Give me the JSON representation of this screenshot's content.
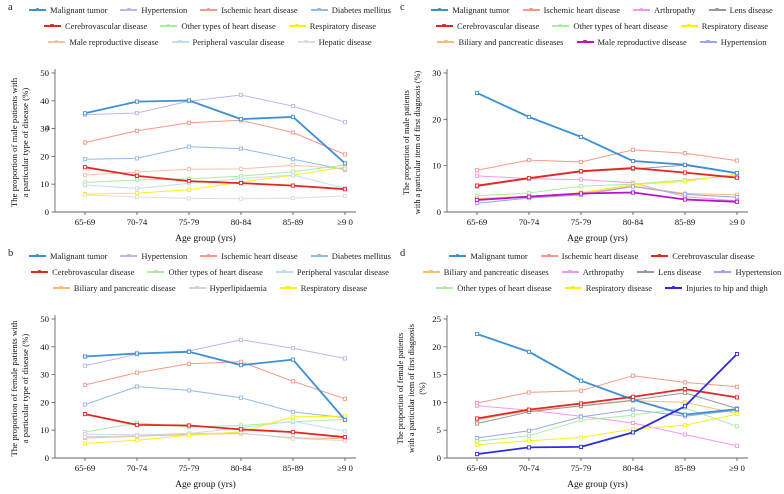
{
  "figure": {
    "background": "#ffffff",
    "axis_color": "#666666",
    "x_label": "Age group (yrs)",
    "x_categories": [
      "65-69",
      "70-74",
      "75-79",
      "80-84",
      "85-89",
      "≥9 0"
    ]
  },
  "chart_data": [
    {
      "id": "a",
      "type": "line",
      "panel_letter": "a",
      "stray_label": "a",
      "xlabel": "Age group (yrs)",
      "categories": [
        "65-69",
        "70-74",
        "75-79",
        "80-84",
        "85-89",
        "≥9 0"
      ],
      "ylabel_lines": [
        "The proportion of male patients with",
        "a particular type of disease  (%)"
      ],
      "ylim": [
        0,
        50
      ],
      "yticks": [
        0,
        10,
        20,
        30,
        40,
        50
      ],
      "grid": false,
      "legend_position": "top",
      "legend_rows": [
        4,
        3,
        3
      ],
      "series": [
        {
          "name": "Malignant tumor",
          "color": "#3d8fd6",
          "bold": true,
          "values": [
            35.5,
            39.7,
            40.1,
            33.4,
            34.2,
            17.5
          ]
        },
        {
          "name": "Hypertension",
          "color": "#bdb8ec",
          "bold": false,
          "values": [
            35.0,
            35.6,
            39.9,
            42.1,
            38.1,
            32.3
          ]
        },
        {
          "name": "Ischemic heart disease",
          "color": "#f6998a",
          "bold": false,
          "values": [
            25.0,
            29.2,
            32.1,
            33.0,
            28.6,
            20.7
          ]
        },
        {
          "name": "Diabetes mellitus",
          "color": "#90bce8",
          "bold": false,
          "values": [
            19.0,
            19.3,
            23.5,
            22.8,
            19.0,
            15.2
          ]
        },
        {
          "name": "Cerebrovascular disease",
          "color": "#e32722",
          "bold": true,
          "values": [
            16.1,
            13.0,
            11.1,
            10.4,
            9.5,
            8.2
          ]
        },
        {
          "name": "Other types of heart disease",
          "color": "#a8eda0",
          "bold": false,
          "values": [
            10.6,
            11.5,
            11.9,
            12.9,
            14.5,
            16.9
          ]
        },
        {
          "name": "Respiratory disease",
          "color": "#f6f01c",
          "bold": false,
          "values": [
            6.4,
            6.8,
            8.0,
            10.8,
            13.2,
            16.2
          ]
        },
        {
          "name": "Male reproductive disease",
          "color": "#f9c0a8",
          "bold": false,
          "values": [
            13.3,
            14.4,
            15.4,
            15.5,
            16.8,
            15.6
          ]
        },
        {
          "name": "Peripheral vascular disease",
          "color": "#c3dcf5",
          "bold": false,
          "values": [
            9.7,
            8.5,
            10.3,
            12.0,
            13.3,
            8.5
          ]
        },
        {
          "name": "Hepatic disease",
          "color": "#dedede",
          "bold": false,
          "values": [
            6.1,
            5.4,
            4.9,
            4.8,
            5.0,
            5.8
          ]
        }
      ]
    },
    {
      "id": "b",
      "type": "line",
      "panel_letter": "b",
      "stray_label": "",
      "xlabel": "Age group (yrs)",
      "categories": [
        "65-69",
        "70-74",
        "75-79",
        "80-84",
        "85-89",
        "≥9 0"
      ],
      "ylabel_lines": [
        "The proportion of female patients with",
        "a particular type of disease (%)"
      ],
      "ylim": [
        0,
        50
      ],
      "yticks": [
        0,
        10,
        20,
        30,
        40,
        50
      ],
      "grid": false,
      "legend_position": "top",
      "legend_rows": [
        4,
        3,
        3
      ],
      "series": [
        {
          "name": "Malignant tumor",
          "color": "#3d8fd6",
          "bold": true,
          "values": [
            36.5,
            37.6,
            38.2,
            33.4,
            35.4,
            13.7
          ]
        },
        {
          "name": "Hypertension",
          "color": "#bdb8ec",
          "bold": false,
          "values": [
            33.2,
            37.3,
            38.5,
            42.5,
            39.5,
            35.8
          ]
        },
        {
          "name": "Ischemic heart disease",
          "color": "#f6998a",
          "bold": false,
          "values": [
            26.3,
            30.7,
            33.9,
            34.6,
            27.6,
            21.3
          ]
        },
        {
          "name": "Diabetes mellitus",
          "color": "#90bce8",
          "bold": false,
          "values": [
            19.2,
            25.7,
            24.3,
            21.7,
            16.6,
            14.5
          ]
        },
        {
          "name": "Cerebrovascular disease",
          "color": "#e32722",
          "bold": true,
          "values": [
            15.8,
            11.9,
            11.7,
            10.3,
            9.3,
            7.5
          ]
        },
        {
          "name": "Other types of heart disease",
          "color": "#a8eda0",
          "bold": false,
          "values": [
            9.3,
            12.6,
            11.2,
            11.7,
            13.0,
            13.9
          ]
        },
        {
          "name": "Peripheral vascular disease",
          "color": "#c3dcf5",
          "bold": false,
          "values": [
            8.6,
            8.3,
            8.8,
            10.9,
            13.2,
            9.6
          ]
        },
        {
          "name": "Biliary and pancreatic disease",
          "color": "#f9bc74",
          "bold": false,
          "values": [
            7.2,
            7.8,
            8.4,
            8.8,
            7.3,
            6.9
          ]
        },
        {
          "name": "Hyperlipidaemia",
          "color": "#d4d4d4",
          "bold": false,
          "values": [
            7.6,
            8.0,
            8.8,
            9.0,
            7.0,
            6.3
          ]
        },
        {
          "name": "Respiratory disease",
          "color": "#f6f01c",
          "bold": false,
          "values": [
            5.2,
            6.4,
            8.2,
            9.4,
            14.8,
            15.0
          ]
        }
      ]
    },
    {
      "id": "c",
      "type": "line",
      "panel_letter": "c",
      "stray_label": "",
      "xlabel": "Age group (yrs)",
      "categories": [
        "65-69",
        "70-74",
        "75-79",
        "80-84",
        "85-89",
        "≥9 0"
      ],
      "ylabel_lines": [
        "The proportion of male patients",
        "with a particular item of first diagnosis (%)"
      ],
      "ylim": [
        0,
        30
      ],
      "yticks": [
        0,
        10,
        20,
        30
      ],
      "grid": false,
      "legend_position": "top",
      "legend_rows": [
        4,
        3,
        3
      ],
      "series": [
        {
          "name": "Malignant tumor",
          "color": "#3d8fd6",
          "bold": true,
          "values": [
            25.7,
            20.5,
            16.2,
            11.0,
            10.2,
            8.4
          ]
        },
        {
          "name": "Ischemic heart disease",
          "color": "#f6998a",
          "bold": false,
          "values": [
            9.0,
            11.2,
            10.8,
            13.4,
            12.7,
            11.1
          ]
        },
        {
          "name": "Arthropathy",
          "color": "#f598ea",
          "bold": false,
          "values": [
            7.8,
            7.2,
            7.0,
            6.3,
            3.3,
            2.4
          ]
        },
        {
          "name": "Lens disease",
          "color": "#999999",
          "bold": false,
          "values": [
            5.5,
            7.2,
            8.7,
            9.3,
            10.1,
            8.3
          ]
        },
        {
          "name": "Cerebrovascular disease",
          "color": "#e32722",
          "bold": true,
          "values": [
            5.7,
            7.3,
            8.8,
            9.5,
            8.5,
            7.4
          ]
        },
        {
          "name": "Other types of heart disease",
          "color": "#a8eda0",
          "bold": false,
          "values": [
            3.5,
            4.1,
            5.6,
            6.0,
            6.9,
            7.9
          ]
        },
        {
          "name": "Respiratory disease",
          "color": "#f6f01c",
          "bold": false,
          "values": [
            2.9,
            3.3,
            4.2,
            5.9,
            6.6,
            8.2
          ]
        },
        {
          "name": "Biliary and pancreatic diseases",
          "color": "#f9bc74",
          "bold": false,
          "values": [
            2.9,
            3.4,
            4.0,
            5.6,
            4.0,
            3.7
          ]
        },
        {
          "name": "Male reproductive disease",
          "color": "#ba12c6",
          "bold": true,
          "values": [
            2.6,
            3.3,
            4.0,
            4.2,
            2.7,
            2.2
          ]
        },
        {
          "name": "Hypertension",
          "color": "#9aa5ec",
          "bold": false,
          "values": [
            1.9,
            3.0,
            3.7,
            5.5,
            3.8,
            3.2
          ]
        }
      ]
    },
    {
      "id": "d",
      "type": "line",
      "panel_letter": "d",
      "stray_label": "",
      "xlabel": "Age group (yrs)",
      "ylabel_lines": [
        "The proportion of female patients",
        "with a particular item of first diagnosis",
        "(%)"
      ],
      "categories": [
        "65-69",
        "70-74",
        "75-79",
        "80-84",
        "85-89",
        "≥9 0"
      ],
      "ylim": [
        0,
        25
      ],
      "yticks": [
        0,
        5,
        10,
        15,
        20,
        25
      ],
      "grid": false,
      "legend_position": "top",
      "legend_rows": [
        3,
        4,
        3
      ],
      "series": [
        {
          "name": "Malignant tumor",
          "color": "#3d8fd6",
          "bold": true,
          "values": [
            22.3,
            19.1,
            13.9,
            10.5,
            7.8,
            8.8
          ]
        },
        {
          "name": "Ischemic heart disease",
          "color": "#f6998a",
          "bold": false,
          "values": [
            9.9,
            11.8,
            12.1,
            14.8,
            13.6,
            12.8
          ]
        },
        {
          "name": "Cerebrovascular disease",
          "color": "#e32722",
          "bold": true,
          "values": [
            7.1,
            8.7,
            9.8,
            11.0,
            12.4,
            10.9
          ]
        },
        {
          "name": "Biliary and pancreatic diseases",
          "color": "#f9bc74",
          "bold": false,
          "values": [
            6.9,
            8.5,
            9.3,
            10.3,
            10.0,
            8.0
          ]
        },
        {
          "name": "Arthropathy",
          "color": "#f598ea",
          "bold": false,
          "values": [
            9.4,
            8.6,
            7.5,
            6.3,
            4.2,
            2.2
          ]
        },
        {
          "name": "Lens disease",
          "color": "#999999",
          "bold": false,
          "values": [
            6.2,
            8.3,
            9.4,
            10.4,
            11.7,
            8.9
          ]
        },
        {
          "name": "Hypertension",
          "color": "#9aa5ec",
          "bold": false,
          "values": [
            3.6,
            4.9,
            7.4,
            8.7,
            7.5,
            8.6
          ]
        },
        {
          "name": "Other types of heart disease",
          "color": "#a8eda0",
          "bold": false,
          "values": [
            3.0,
            4.0,
            6.8,
            7.7,
            9.0,
            5.7
          ]
        },
        {
          "name": "Respiratory disease",
          "color": "#f6f01c",
          "bold": false,
          "values": [
            2.4,
            3.1,
            3.7,
            5.2,
            5.9,
            7.9
          ]
        },
        {
          "name": "Injuries to hip and thigh",
          "color": "#2b2bdf",
          "bold": true,
          "values": [
            0.7,
            1.9,
            2.0,
            4.6,
            9.3,
            18.7
          ]
        }
      ]
    }
  ]
}
